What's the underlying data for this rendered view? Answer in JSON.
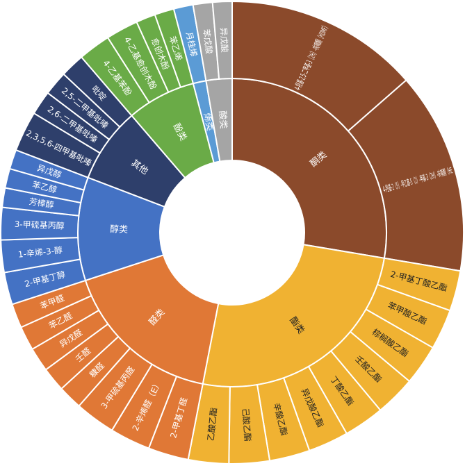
{
  "chart_data": {
    "type": "sunburst",
    "title": "",
    "colors": {
      "酮类": "#8B4A2B",
      "酯类": "#F0B232",
      "醛类": "#E07836",
      "醇类": "#4472C4",
      "其他": "#2E3F6B",
      "酚类": "#6AAB47",
      "烯类": "#5B9BD5",
      "酸类": "#A5A5A5"
    },
    "groups": [
      {
        "name": "酮类",
        "children": [
          {
            "name": "4-羟基-2,5-二甲基-3（2H）-呋喃酮（HDMF）",
            "value": 12
          },
          {
            "name": "4-羟基-2（5）-甲乙基-5（2）-甲基-3（2H）-呋喃酮（HE",
            "value": 12.5
          }
        ]
      },
      {
        "name": "酯类",
        "children": [
          {
            "name": "2-甲基丁酸乙酯",
            "value": 2.5
          },
          {
            "name": "苯甲酸乙酯",
            "value": 2.5
          },
          {
            "name": "棕榈酸乙酯",
            "value": 2.5
          },
          {
            "name": "壬酸乙酯",
            "value": 2.5
          },
          {
            "name": "丁酸乙酯",
            "value": 2.5
          },
          {
            "name": "异戊酸乙酯",
            "value": 2.5
          },
          {
            "name": "辛酸乙酯",
            "value": 2.5
          },
          {
            "name": "己酸乙酯",
            "value": 2.5
          },
          {
            "name": "乙酸乙酯",
            "value": 2.5
          }
        ]
      },
      {
        "name": "醛类",
        "children": [
          {
            "name": "2-甲基丁醛",
            "value": 2.5
          },
          {
            "name": "2-辛烯醛（E）",
            "value": 2.5
          },
          {
            "name": "3-甲硫基丙醛",
            "value": 2.5
          },
          {
            "name": "糠醛",
            "value": 1.5
          },
          {
            "name": "壬醛",
            "value": 1.5
          },
          {
            "name": "异戊醛",
            "value": 1.5
          },
          {
            "name": "苯乙醛",
            "value": 1.5
          },
          {
            "name": "苯甲醛",
            "value": 1.5
          }
        ]
      },
      {
        "name": "醇类",
        "children": [
          {
            "name": "2-甲基丁醇",
            "value": 2
          },
          {
            "name": "1-辛烯-3-醇",
            "value": 2
          },
          {
            "name": "3-甲硫基丙醇",
            "value": 2
          },
          {
            "name": "芳樟醇",
            "value": 1.2
          },
          {
            "name": "苯乙醇",
            "value": 1.2
          },
          {
            "name": "异戊醇",
            "value": 1.2
          }
        ]
      },
      {
        "name": "其他",
        "children": [
          {
            "name": "2,3,5,6-四甲基吡嗪",
            "value": 2.5
          },
          {
            "name": "2,6-二甲基吡嗪",
            "value": 1.5
          },
          {
            "name": "2,5-二甲基吡嗪",
            "value": 1.5
          },
          {
            "name": "吡啶",
            "value": 1.5
          }
        ]
      },
      {
        "name": "酚类",
        "children": [
          {
            "name": "4-乙基苯酚",
            "value": 2
          },
          {
            "name": "4-乙基愈创木酚",
            "value": 2
          },
          {
            "name": "愈创木酚",
            "value": 1.2
          },
          {
            "name": "苯乙烯",
            "value": 1.2
          }
        ]
      },
      {
        "name": "烯类",
        "children": [
          {
            "name": "月桂烯",
            "value": 1.2
          }
        ]
      },
      {
        "name": "酸类",
        "children": [
          {
            "name": "苯戊酸",
            "value": 1.2
          },
          {
            "name": "异戊酸",
            "value": 1.2
          }
        ]
      }
    ]
  }
}
